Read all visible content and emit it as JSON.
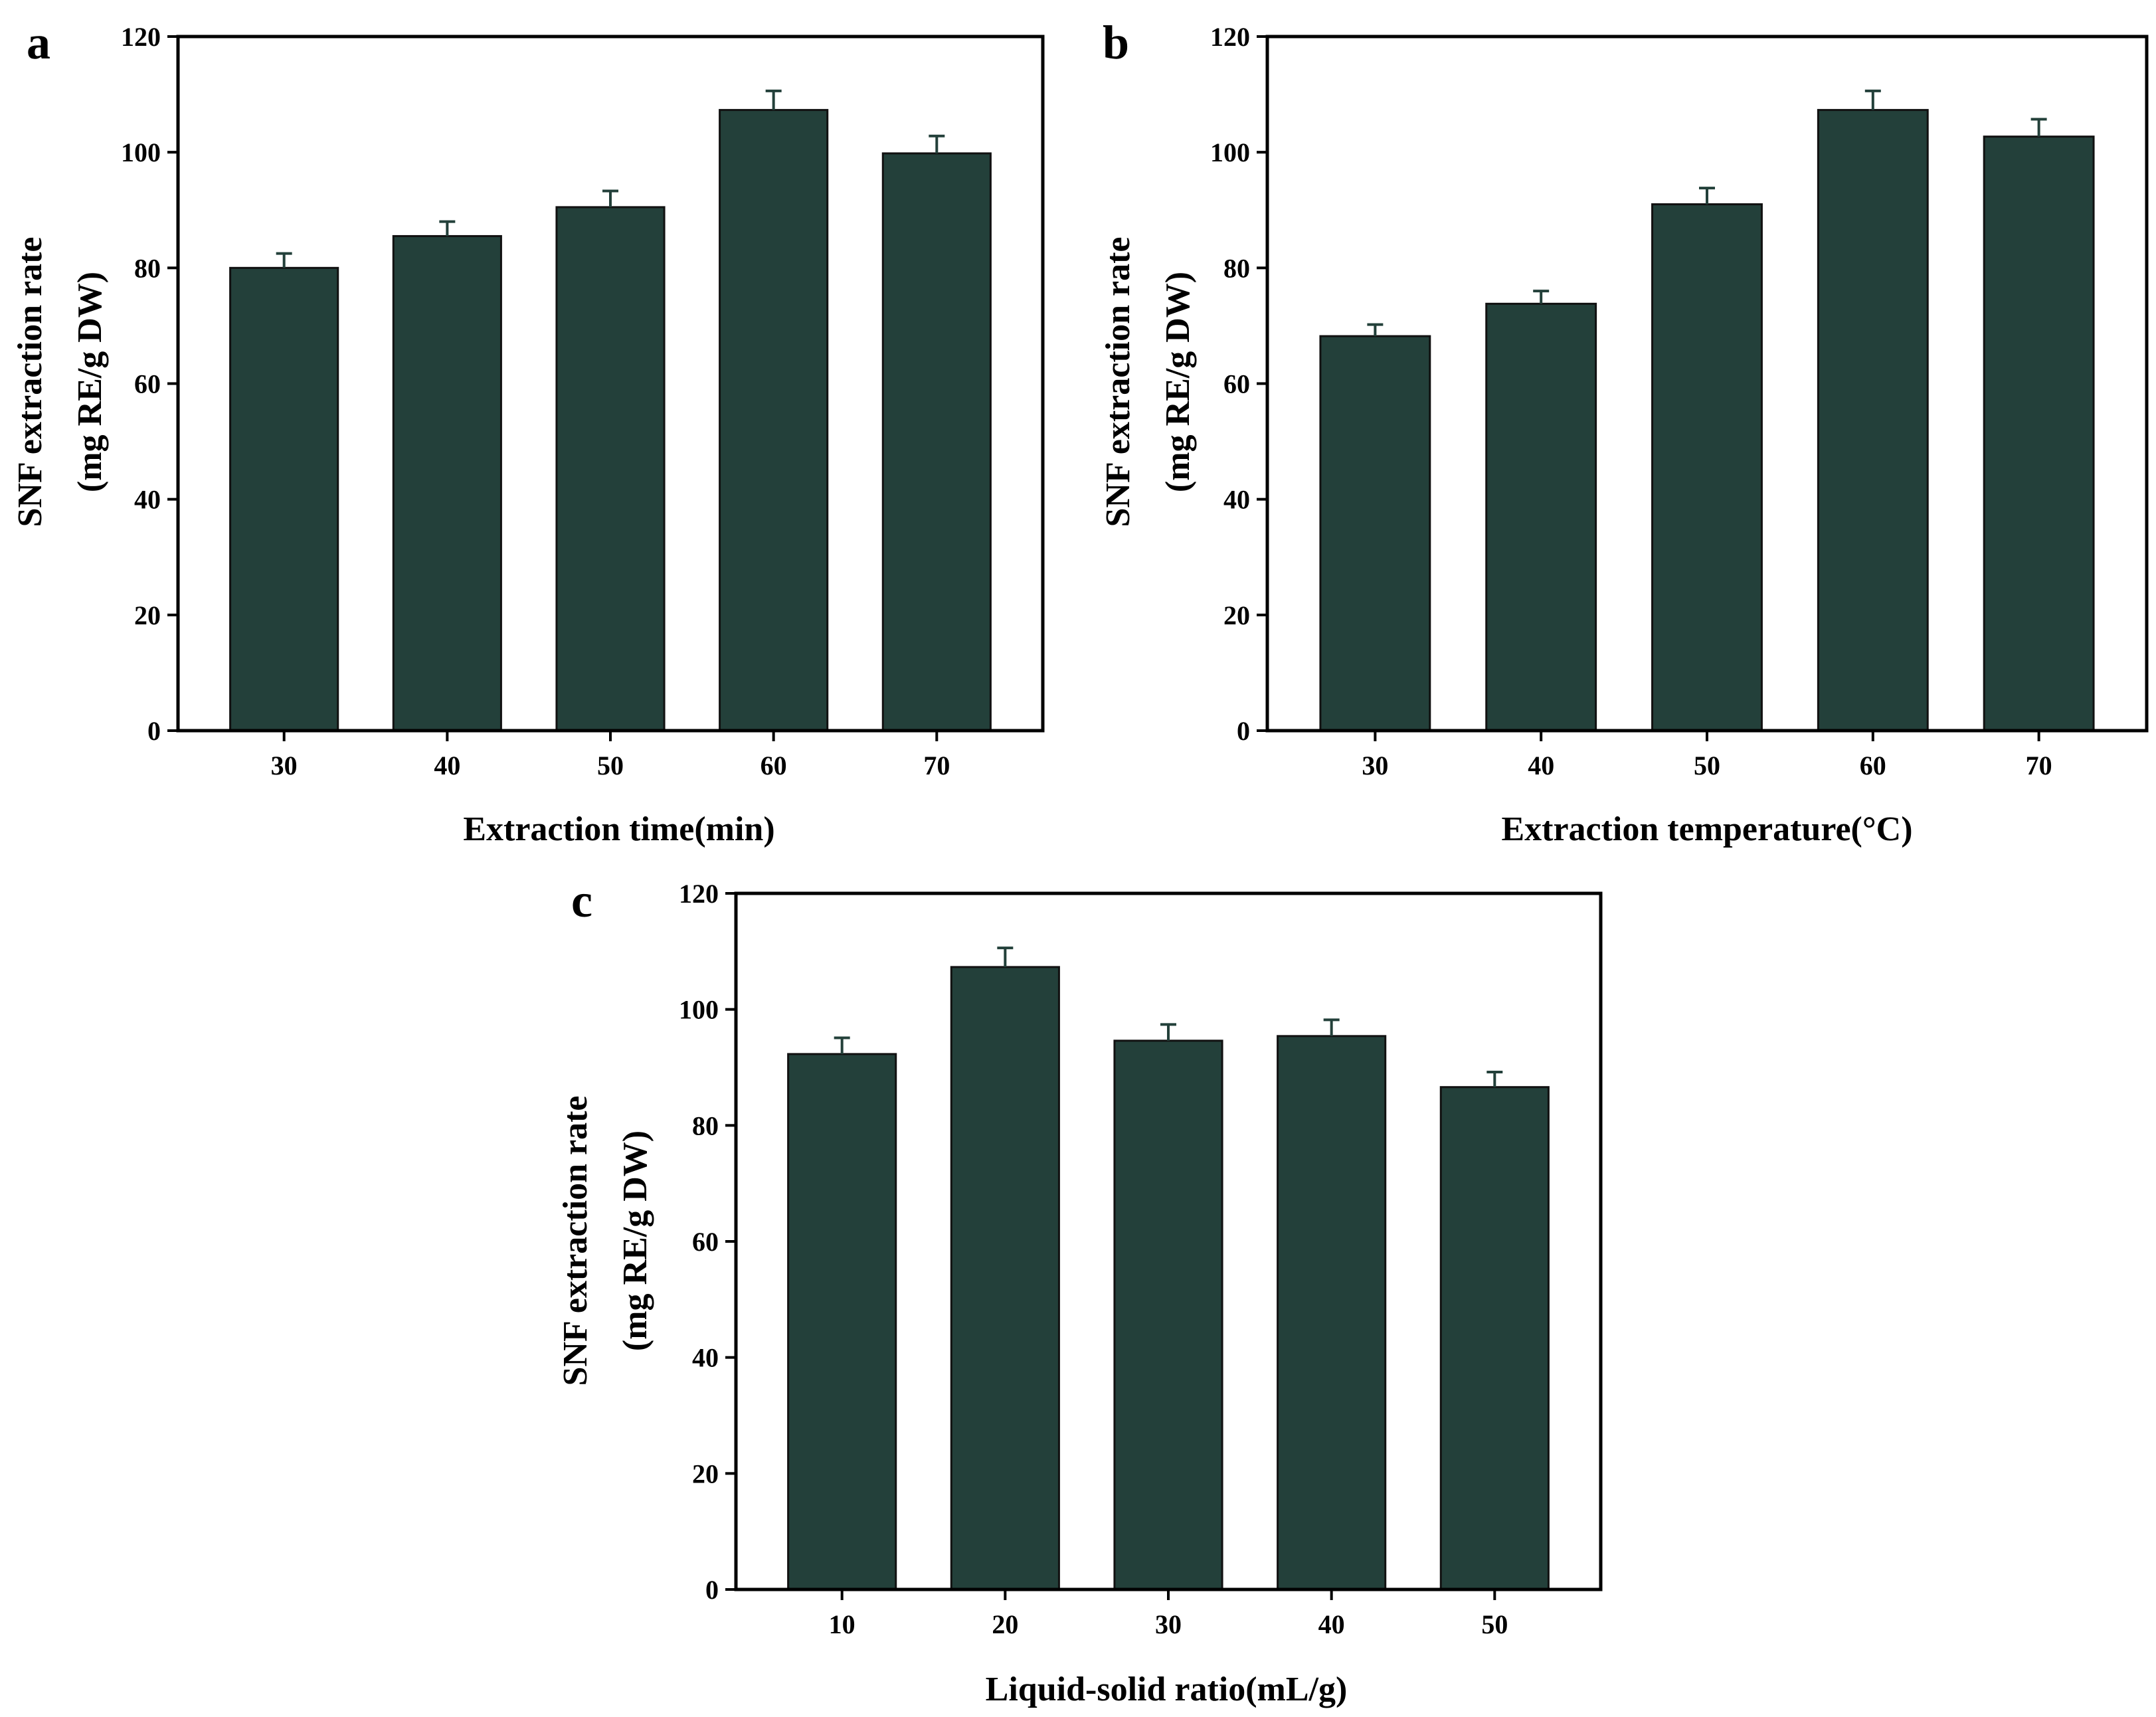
{
  "bar_color": "#23403A",
  "error_color": "#23403A",
  "chart_data": [
    {
      "panel": "a",
      "type": "bar",
      "categories": [
        "30",
        "40",
        "50",
        "60",
        "70"
      ],
      "values": [
        80.0,
        85.5,
        90.5,
        107.3,
        99.8
      ],
      "errors": [
        2.5,
        2.5,
        2.8,
        3.3,
        3.0
      ],
      "xlabel": "Extraction time(min)",
      "ylabel_line1": "SNF extraction rate",
      "ylabel_line2": "(mg RE/g DW)",
      "ylim": [
        0,
        120
      ],
      "yticks": [
        "0",
        "20",
        "40",
        "60",
        "80",
        "100",
        "120"
      ],
      "grid": false
    },
    {
      "panel": "b",
      "type": "bar",
      "categories": [
        "30",
        "40",
        "50",
        "60",
        "70"
      ],
      "values": [
        68.2,
        73.8,
        91.0,
        107.3,
        102.7
      ],
      "errors": [
        2.0,
        2.2,
        2.8,
        3.3,
        3.0
      ],
      "xlabel": "Extraction temperature(°C)",
      "ylabel_line1": "SNF extraction rate",
      "ylabel_line2": "(mg RE/g DW)",
      "ylim": [
        0,
        120
      ],
      "yticks": [
        "0",
        "20",
        "40",
        "60",
        "80",
        "100",
        "120"
      ],
      "grid": false
    },
    {
      "panel": "c",
      "type": "bar",
      "categories": [
        "10",
        "20",
        "30",
        "40",
        "50"
      ],
      "values": [
        92.3,
        107.3,
        94.6,
        95.4,
        86.6
      ],
      "errors": [
        2.8,
        3.3,
        2.8,
        2.8,
        2.6
      ],
      "xlabel": "Liquid-solid ratio(mL/g)",
      "ylabel_line1": "SNF extraction rate",
      "ylabel_line2": "(mg RE/g DW)",
      "ylim": [
        0,
        120
      ],
      "yticks": [
        "0",
        "20",
        "40",
        "60",
        "80",
        "100",
        "120"
      ],
      "grid": false
    }
  ]
}
